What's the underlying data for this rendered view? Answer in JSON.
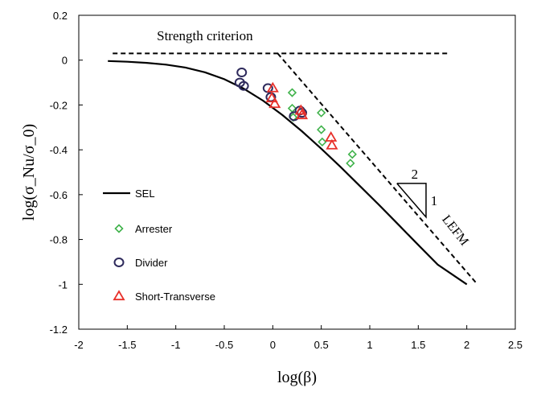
{
  "chart_data": {
    "type": "scatter",
    "xlabel": "log(β)",
    "ylabel": "log(σ_Nu/σ_0)",
    "xlim": [
      -2,
      2.5
    ],
    "ylim": [
      -1.2,
      0.2
    ],
    "xticks": [
      -2,
      -1.5,
      -1,
      -0.5,
      0,
      0.5,
      1,
      1.5,
      2,
      2.5
    ],
    "yticks": [
      0.2,
      0,
      -0.2,
      -0.4,
      -0.6,
      -0.8,
      -1,
      -1.2
    ],
    "xtick_labels": [
      "-2",
      "-1.5",
      "-1",
      "-0.5",
      "0",
      "0.5",
      "1",
      "1.5",
      "2",
      "2.5"
    ],
    "ytick_labels": [
      "0.2",
      "0",
      "-0.2",
      "-0.4",
      "-0.6",
      "-0.8",
      "-1",
      "-1.2"
    ],
    "annotations": {
      "strength": "Strength criterion",
      "lefm": "LEFM",
      "slope_run": "2",
      "slope_rise": "1"
    },
    "series": [
      {
        "name": "SEL",
        "kind": "line",
        "color": "#000000",
        "x": [
          -1.7,
          -1.5,
          -1.3,
          -1.1,
          -0.9,
          -0.7,
          -0.5,
          -0.3,
          -0.1,
          0.1,
          0.3,
          0.5,
          0.7,
          0.9,
          1.1,
          1.3,
          1.5,
          1.7,
          2.0
        ],
        "y": [
          -0.004,
          -0.007,
          -0.012,
          -0.02,
          -0.033,
          -0.054,
          -0.085,
          -0.127,
          -0.181,
          -0.245,
          -0.317,
          -0.395,
          -0.477,
          -0.562,
          -0.648,
          -0.736,
          -0.824,
          -0.912,
          -1.0
        ]
      },
      {
        "name": "Strength criterion",
        "kind": "dashed",
        "color": "#000000",
        "x": [
          -1.65,
          1.8
        ],
        "y": [
          0.03,
          0.03
        ]
      },
      {
        "name": "LEFM",
        "kind": "dashed",
        "color": "#000000",
        "x": [
          0.05,
          2.1
        ],
        "y": [
          0.03,
          -0.995
        ]
      },
      {
        "name": "Arrester",
        "kind": "marker",
        "marker": "diamond",
        "color": "#3fb24a",
        "x": [
          0.2,
          0.2,
          0.21,
          0.5,
          0.5,
          0.51,
          0.8,
          0.82
        ],
        "y": [
          -0.145,
          -0.215,
          -0.255,
          -0.235,
          -0.31,
          -0.365,
          -0.46,
          -0.42
        ]
      },
      {
        "name": "Divider",
        "kind": "marker",
        "marker": "circle",
        "color": "#2e2a5c",
        "x": [
          -0.32,
          -0.34,
          -0.3,
          -0.05,
          -0.02,
          0.22,
          0.28,
          0.3
        ],
        "y": [
          -0.055,
          -0.1,
          -0.115,
          -0.125,
          -0.165,
          -0.25,
          -0.225,
          -0.235
        ]
      },
      {
        "name": "Short-Transverse",
        "kind": "marker",
        "marker": "triangle",
        "color": "#e8302a",
        "x": [
          0.0,
          -0.01,
          0.02,
          0.29,
          0.3,
          0.6,
          0.61
        ],
        "y": [
          -0.125,
          -0.17,
          -0.195,
          -0.225,
          -0.245,
          -0.345,
          -0.38
        ]
      }
    ],
    "legend": [
      {
        "label": "SEL",
        "marker": "line"
      },
      {
        "label": "Arrester",
        "marker": "diamond",
        "color": "#3fb24a"
      },
      {
        "label": "Divider",
        "marker": "circle",
        "color": "#2e2a5c"
      },
      {
        "label": "Short-Transverse",
        "marker": "triangle",
        "color": "#e8302a"
      }
    ],
    "legend_position": "left"
  }
}
